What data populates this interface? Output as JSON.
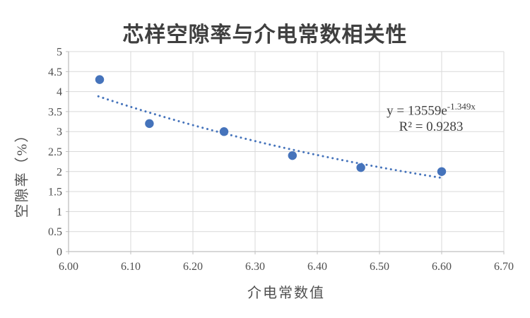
{
  "chart_data": {
    "type": "scatter",
    "title": "芯样空隙率与介电常数相关性",
    "xlabel": "介电常数值",
    "ylabel": "空隙率（%）",
    "xlim": [
      6.0,
      6.7
    ],
    "ylim": [
      0,
      5
    ],
    "grid": true,
    "legend": false,
    "x_ticks": [
      "6.00",
      "6.10",
      "6.20",
      "6.30",
      "6.40",
      "6.50",
      "6.60",
      "6.70"
    ],
    "y_ticks": [
      "0",
      "0.5",
      "1",
      "1.5",
      "2",
      "2.5",
      "3",
      "3.5",
      "4",
      "4.5",
      "5"
    ],
    "points": [
      {
        "x": 6.05,
        "y": 4.3
      },
      {
        "x": 6.13,
        "y": 3.2
      },
      {
        "x": 6.25,
        "y": 3.0
      },
      {
        "x": 6.36,
        "y": 2.4
      },
      {
        "x": 6.47,
        "y": 2.1
      },
      {
        "x": 6.6,
        "y": 2.0
      }
    ],
    "trendline": {
      "type": "exponential",
      "a": 13559,
      "b": -1.349,
      "x_start": 6.048,
      "x_end": 6.606,
      "equation_base": "y = 13559e",
      "equation_exponent": "-1.349x",
      "r_squared": "R² = 0.9283"
    },
    "colors": {
      "marker": "#4573BB",
      "trendline": "#4573BB",
      "gridline": "#D9D9D9",
      "axis": "#BFBFBF",
      "tick_text": "#4F4F4F",
      "title_text": "#3F3F3F"
    }
  }
}
